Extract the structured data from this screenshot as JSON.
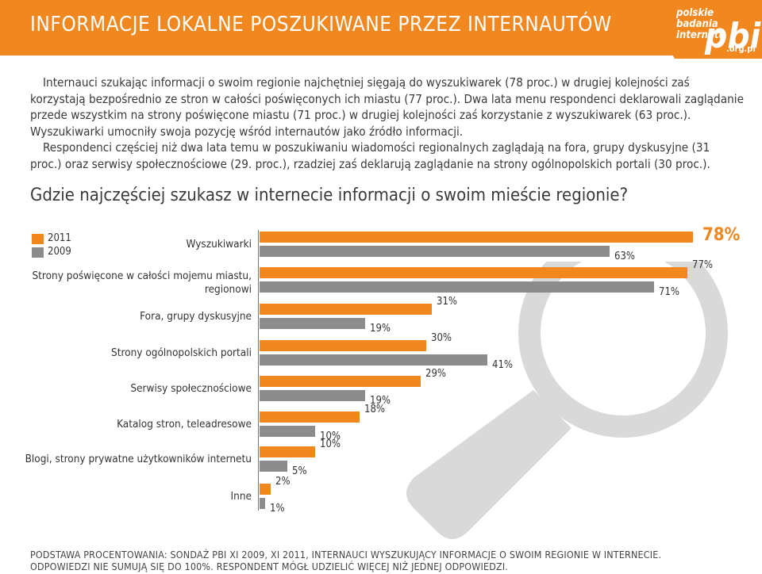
{
  "header": {
    "title": "INFORMACJE LOKALNE POSZUKIWANE PRZEZ INTERNAUTÓW",
    "logo": {
      "line1": "polskie",
      "line2": "badania",
      "line3": "internetu",
      "brand": "pbi",
      "domain": ".org.pl"
    }
  },
  "intro": {
    "paragraph1": "Internauci szukając informacji o swoim regionie najchętniej sięgają do wyszukiwarek (78 proc.) w drugiej kolejności zaś korzystają bezpośrednio ze stron w całości poświęconych ich miastu (77 proc.). Dwa lata menu respondenci deklarowali zaglądanie przede wszystkim na strony poświęcone miastu (71 proc.) w drugiej kolejności zaś korzystanie z wyszukiwarek (63 proc.). Wyszukiwarki umocniły swoja pozycję wśród internautów jako źródło informacji.",
    "paragraph2": "Respondenci częściej niż dwa lata temu w poszukiwaniu wiadomości regionalnych zaglądają na fora, grupy dyskusyjne (31 proc.) oraz serwisy społecznościowe (29. proc.), rzadziej zaś deklarują zaglądanie na strony ogólnopolskich portali (30 proc.)."
  },
  "question": "Gdzie najczęściej szukasz w internecie informacji o swoim mieście regionie?",
  "colors": {
    "orange": "#f0871f",
    "gray": "#8c8c8c",
    "magnifier": "#d9d9d9"
  },
  "chart_data": {
    "type": "bar",
    "orientation": "horizontal",
    "categories": [
      "Wyszukiwarki",
      "Strony poświęcone w całości mojemu miastu, regionowi",
      "Fora, grupy dyskusyjne",
      "Strony ogólnopolskich portali",
      "Serwisy społecznościowe",
      "Katalog stron, teleadresowe",
      "Blogi, strony prywatne użytkowników internetu",
      "Inne"
    ],
    "series": [
      {
        "name": "2011",
        "values": [
          78,
          77,
          31,
          30,
          29,
          18,
          10,
          2
        ],
        "labels": [
          "78%",
          "77%",
          "31%",
          "30%",
          "29%",
          "18%",
          "10%",
          "2%"
        ]
      },
      {
        "name": "2009",
        "values": [
          63,
          71,
          19,
          41,
          19,
          10,
          5,
          1
        ],
        "labels": [
          "63%",
          "71%",
          "19%",
          "41%",
          "19%",
          "10%",
          "5%",
          "1%"
        ]
      }
    ],
    "xlim": [
      0,
      100
    ],
    "legend": "top-left"
  },
  "footer": {
    "line1": "PODSTAWA PROCENTOWANIA: SONDAŻ PBI XI 2009, XI 2011, INTERNAUCI WYSZUKUJĄCY INFORMACJE O SWOIM REGIONIE W INTERNECIE.",
    "line2": "ODPOWIEDZI NIE SUMUJĄ SIĘ DO 100%. RESPONDENT MÓGŁ UDZIELIĆ WIĘCEJ NIŻ JEDNEJ ODPOWIEDZI."
  }
}
